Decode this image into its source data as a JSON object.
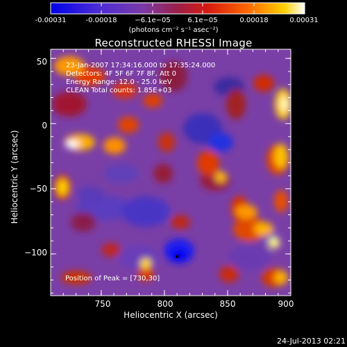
{
  "chart_data": {
    "type": "heatmap",
    "title": "Reconstructed RHESSI Image",
    "xlabel": "Heliocentric X (arcsec)",
    "ylabel": "Heliocentric Y (arcsec)",
    "xlim": [
      710,
      900
    ],
    "ylim": [
      -132,
      57
    ],
    "x_ticks": [
      "750",
      "800",
      "850",
      "900"
    ],
    "y_ticks": [
      "50",
      "0",
      "−50",
      "−100"
    ],
    "colorbar": {
      "ticks": [
        "-0.00031",
        "-0.00018",
        "−6.1e−05",
        "6.1e−05",
        "0.00018",
        "0.00031"
      ],
      "range": [
        -0.00031,
        0.00031
      ],
      "unit_label": "(photons cm⁻² s⁻¹ asec⁻²)",
      "colors": [
        "#0000e6",
        "#6a2bd0",
        "#8f3a8c",
        "#c01820",
        "#e83a00",
        "#ff8a00",
        "#ffd000",
        "#ffffff"
      ]
    },
    "annotations": {
      "time": "23-Jan-2007 17:34:16.000 to 17:35:24.000",
      "detectors": "Detectors: 4F 5F 6F 7F 8F, Att 0",
      "energy": "Energy Range: 12.0 - 25.0 keV",
      "counts": "CLEAN    Total counts: 1.85E+03",
      "peak": "Position of Peak = [730,30]"
    },
    "marker": {
      "label": "min",
      "x": 810,
      "y": -102
    },
    "footer_date": "24-Jul-2013 02:21"
  }
}
